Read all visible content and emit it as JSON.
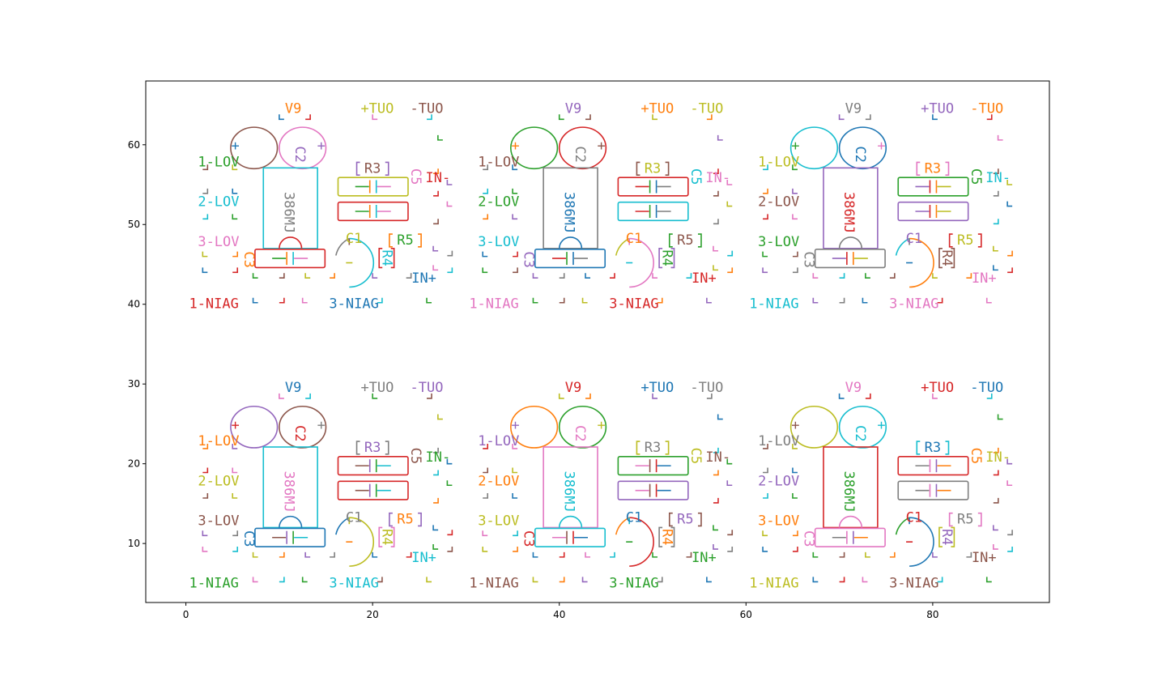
{
  "chart_data": {
    "type": "scatter",
    "title": "",
    "xlabel": "",
    "ylabel": "",
    "xlim": [
      -4.3,
      92.5
    ],
    "ylim": [
      2.6,
      68
    ],
    "grid": false,
    "xticks": [
      0,
      20,
      40,
      60,
      80
    ],
    "yticks": [
      10,
      20,
      30,
      40,
      50,
      60
    ],
    "xtick_labels": [
      "0",
      "20",
      "40",
      "60",
      "80"
    ],
    "ytick_labels": [
      "10",
      "20",
      "30",
      "40",
      "50",
      "60"
    ],
    "palette": [
      "#1f77b4",
      "#ff7f0e",
      "#2ca02c",
      "#d62728",
      "#9467bd",
      "#8c564b",
      "#e377c2",
      "#7f7f7f",
      "#bcbd22",
      "#17becf"
    ],
    "panel_offsets": [
      {
        "dx": 0,
        "dy": 35
      },
      {
        "dx": 30,
        "dy": 35
      },
      {
        "dx": 60,
        "dy": 35
      },
      {
        "dx": 0,
        "dy": 0
      },
      {
        "dx": 30,
        "dy": 0
      },
      {
        "dx": 60,
        "dy": 0
      }
    ],
    "labels": [
      {
        "text": "V9",
        "x": 11.5,
        "y": 29.5
      },
      {
        "text": "+TUO",
        "x": 20.5,
        "y": 29.5
      },
      {
        "text": "-TUO",
        "x": 25.8,
        "y": 29.5
      },
      {
        "text": "1-LOV",
        "x": 3.5,
        "y": 22.8
      },
      {
        "text": "2-LOV",
        "x": 3.5,
        "y": 17.8
      },
      {
        "text": "3-LOV",
        "x": 3.5,
        "y": 12.8
      },
      {
        "text": "1-NIAG",
        "x": 3.0,
        "y": 5.0
      },
      {
        "text": "3-NIAG",
        "x": 18.0,
        "y": 5.0
      },
      {
        "text": "386MJ",
        "x": 11.0,
        "y": 16.5
      },
      {
        "text": "C2",
        "x": 12.2,
        "y": 23.8
      },
      {
        "text": "C3",
        "x": 6.7,
        "y": 10.6
      },
      {
        "text": "C1",
        "x": 18.0,
        "y": 13.2
      },
      {
        "text": "R3",
        "x": 20.0,
        "y": 22.0
      },
      {
        "text": "R5",
        "x": 23.5,
        "y": 13.0
      },
      {
        "text": "R4",
        "x": 21.5,
        "y": 10.8
      },
      {
        "text": "C5",
        "x": 24.6,
        "y": 21.0
      },
      {
        "text": "IN-",
        "x": 27.0,
        "y": 20.8
      },
      {
        "text": "IN+",
        "x": 25.5,
        "y": 8.2
      }
    ],
    "components": {
      "speaker_left": {
        "cx": 7.3,
        "cy": 24.6,
        "rx": 2.5,
        "ry": 2.6
      },
      "speaker_right": {
        "cx": 12.5,
        "cy": 24.6,
        "rx": 2.5,
        "ry": 2.6
      },
      "ic_body": {
        "x0": 8.3,
        "x1": 14.1,
        "y0": 12.0,
        "y1": 22.1
      },
      "cap_c3": {
        "x0": 7.4,
        "x1": 14.9,
        "y0": 9.6,
        "y1": 11.9
      },
      "cap_c2": {
        "x0": 16.3,
        "x1": 23.8,
        "y0": 18.6,
        "y1": 20.9
      },
      "cap_c1": {
        "x0": 16.3,
        "x1": 23.8,
        "y0": 15.5,
        "y1": 17.8
      },
      "pot": {
        "cx": 17.5,
        "cy": 10.2,
        "r": 2.6
      }
    },
    "colors": {
      "panel_1": {
        "spk_l": "#8c564b",
        "spk_r": "#e377c2",
        "ic": "#17becf",
        "ic_base": "#d62728",
        "c2": "#bcbd22",
        "c1": "#d62728",
        "pot": "#17becf"
      },
      "panel_2": {
        "spk_l": "#2ca02c",
        "spk_r": "#d62728",
        "ic": "#7f7f7f",
        "ic_base": "#1f77b4",
        "c2": "#d62728",
        "c1": "#17becf",
        "pot": "#e377c2"
      },
      "panel_3": {
        "spk_l": "#17becf",
        "spk_r": "#1f77b4",
        "ic": "#9467bd",
        "ic_base": "#7f7f7f",
        "c2": "#2ca02c",
        "c1": "#9467bd",
        "pot": "#ff7f0e"
      },
      "panel_4": {
        "spk_l": "#9467bd",
        "spk_r": "#8c564b",
        "ic": "#17becf",
        "ic_base": "#1f77b4",
        "c2": "#d62728",
        "c1": "#d62728",
        "pot": "#bcbd22"
      },
      "panel_5": {
        "spk_l": "#ff7f0e",
        "spk_r": "#2ca02c",
        "ic": "#e377c2",
        "ic_base": "#17becf",
        "c2": "#2ca02c",
        "c1": "#9467bd",
        "pot": "#d62728"
      },
      "panel_6": {
        "spk_l": "#bcbd22",
        "spk_r": "#17becf",
        "ic": "#d62728",
        "ic_base": "#e377c2",
        "c2": "#d62728",
        "c1": "#7f7f7f",
        "pot": "#1f77b4"
      }
    }
  }
}
